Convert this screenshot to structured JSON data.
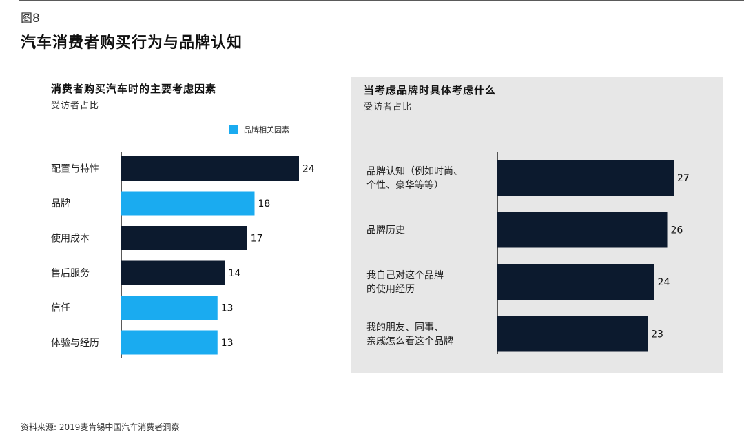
{
  "figure_label": "图8",
  "title": "汽车消费者购买行为与品牌认知",
  "source": "资料来源: 2019麦肯锡中国汽车消费者洞察",
  "colors": {
    "dark": "#0c1a2e",
    "brand": "#1aabf0",
    "panel_bg": "#e7e7e7"
  },
  "chart_data": [
    {
      "type": "bar",
      "orientation": "horizontal",
      "title": "消费者购买汽车时的主要考虑因素",
      "subtitle": "受访者占比",
      "legend": {
        "label": "品牌相关因素",
        "placement": "top-right"
      },
      "categories": [
        "配置与特性",
        "品牌",
        "使用成本",
        "售后服务",
        "信任",
        "体验与经历"
      ],
      "values": [
        24,
        18,
        17,
        14,
        13,
        13
      ],
      "brand_related": [
        false,
        true,
        false,
        false,
        true,
        true
      ]
    },
    {
      "type": "bar",
      "orientation": "horizontal",
      "title": "当考虑品牌时具体考虑什么",
      "subtitle": "受访者占比",
      "categories": [
        [
          "品牌认知（例如时尚、",
          "个性、豪华等等）"
        ],
        [
          "品牌历史"
        ],
        [
          "我自己对这个品牌",
          "的使用经历"
        ],
        [
          "我的朋友、同事、",
          "亲戚怎么看这个品牌"
        ]
      ],
      "values": [
        27,
        26,
        24,
        23
      ]
    }
  ]
}
